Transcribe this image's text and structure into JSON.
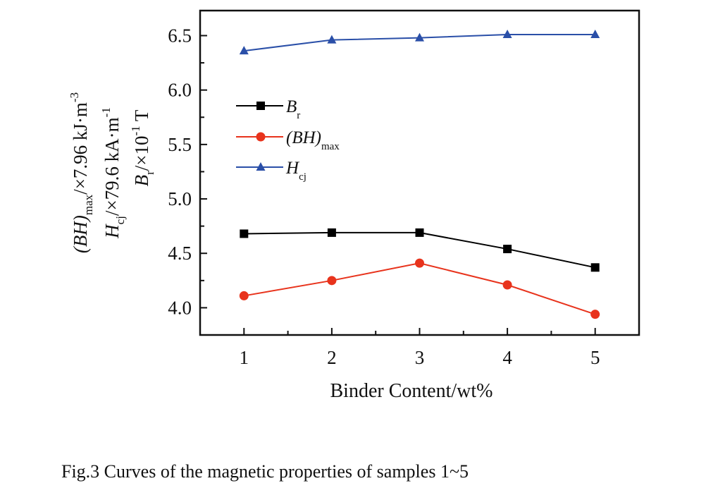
{
  "chart_data": {
    "type": "line",
    "x": [
      1,
      2,
      3,
      4,
      5
    ],
    "xlim": [
      0.5,
      5.5
    ],
    "ylim": [
      3.75,
      6.73
    ],
    "xticks": [
      "1",
      "2",
      "3",
      "4",
      "5"
    ],
    "yticks": [
      "4.0",
      "4.5",
      "5.0",
      "5.5",
      "6.0",
      "6.5"
    ],
    "xlabel": "Binder Content/wt%",
    "ylabel_lines": [
      {
        "main": "(BH)",
        "sub": "max",
        "rest": "/×7.96 kJ·m",
        "sup": "-3"
      },
      {
        "main": "H",
        "sub": "cj",
        "rest": "/×79.6 kA·m",
        "sup": "-1"
      },
      {
        "main": "B",
        "sub": "r",
        "rest": "/×10",
        "sup": "-1",
        "tail": " T"
      }
    ],
    "grid": false,
    "legend_position": "upper-left",
    "series": [
      {
        "name": "B",
        "sub": "r",
        "color": "#000000",
        "marker": "square",
        "values": [
          4.68,
          4.69,
          4.69,
          4.54,
          4.37
        ]
      },
      {
        "name": "(BH)",
        "sub": "max",
        "color": "#e8331c",
        "marker": "circle",
        "values": [
          4.11,
          4.25,
          4.41,
          4.21,
          3.94
        ]
      },
      {
        "name": "H",
        "sub": "cj",
        "color": "#2a4fa8",
        "marker": "triangle",
        "values": [
          6.36,
          6.46,
          6.48,
          6.51,
          6.51
        ]
      }
    ]
  },
  "caption": "Fig.3    Curves of the magnetic properties of samples 1~5"
}
